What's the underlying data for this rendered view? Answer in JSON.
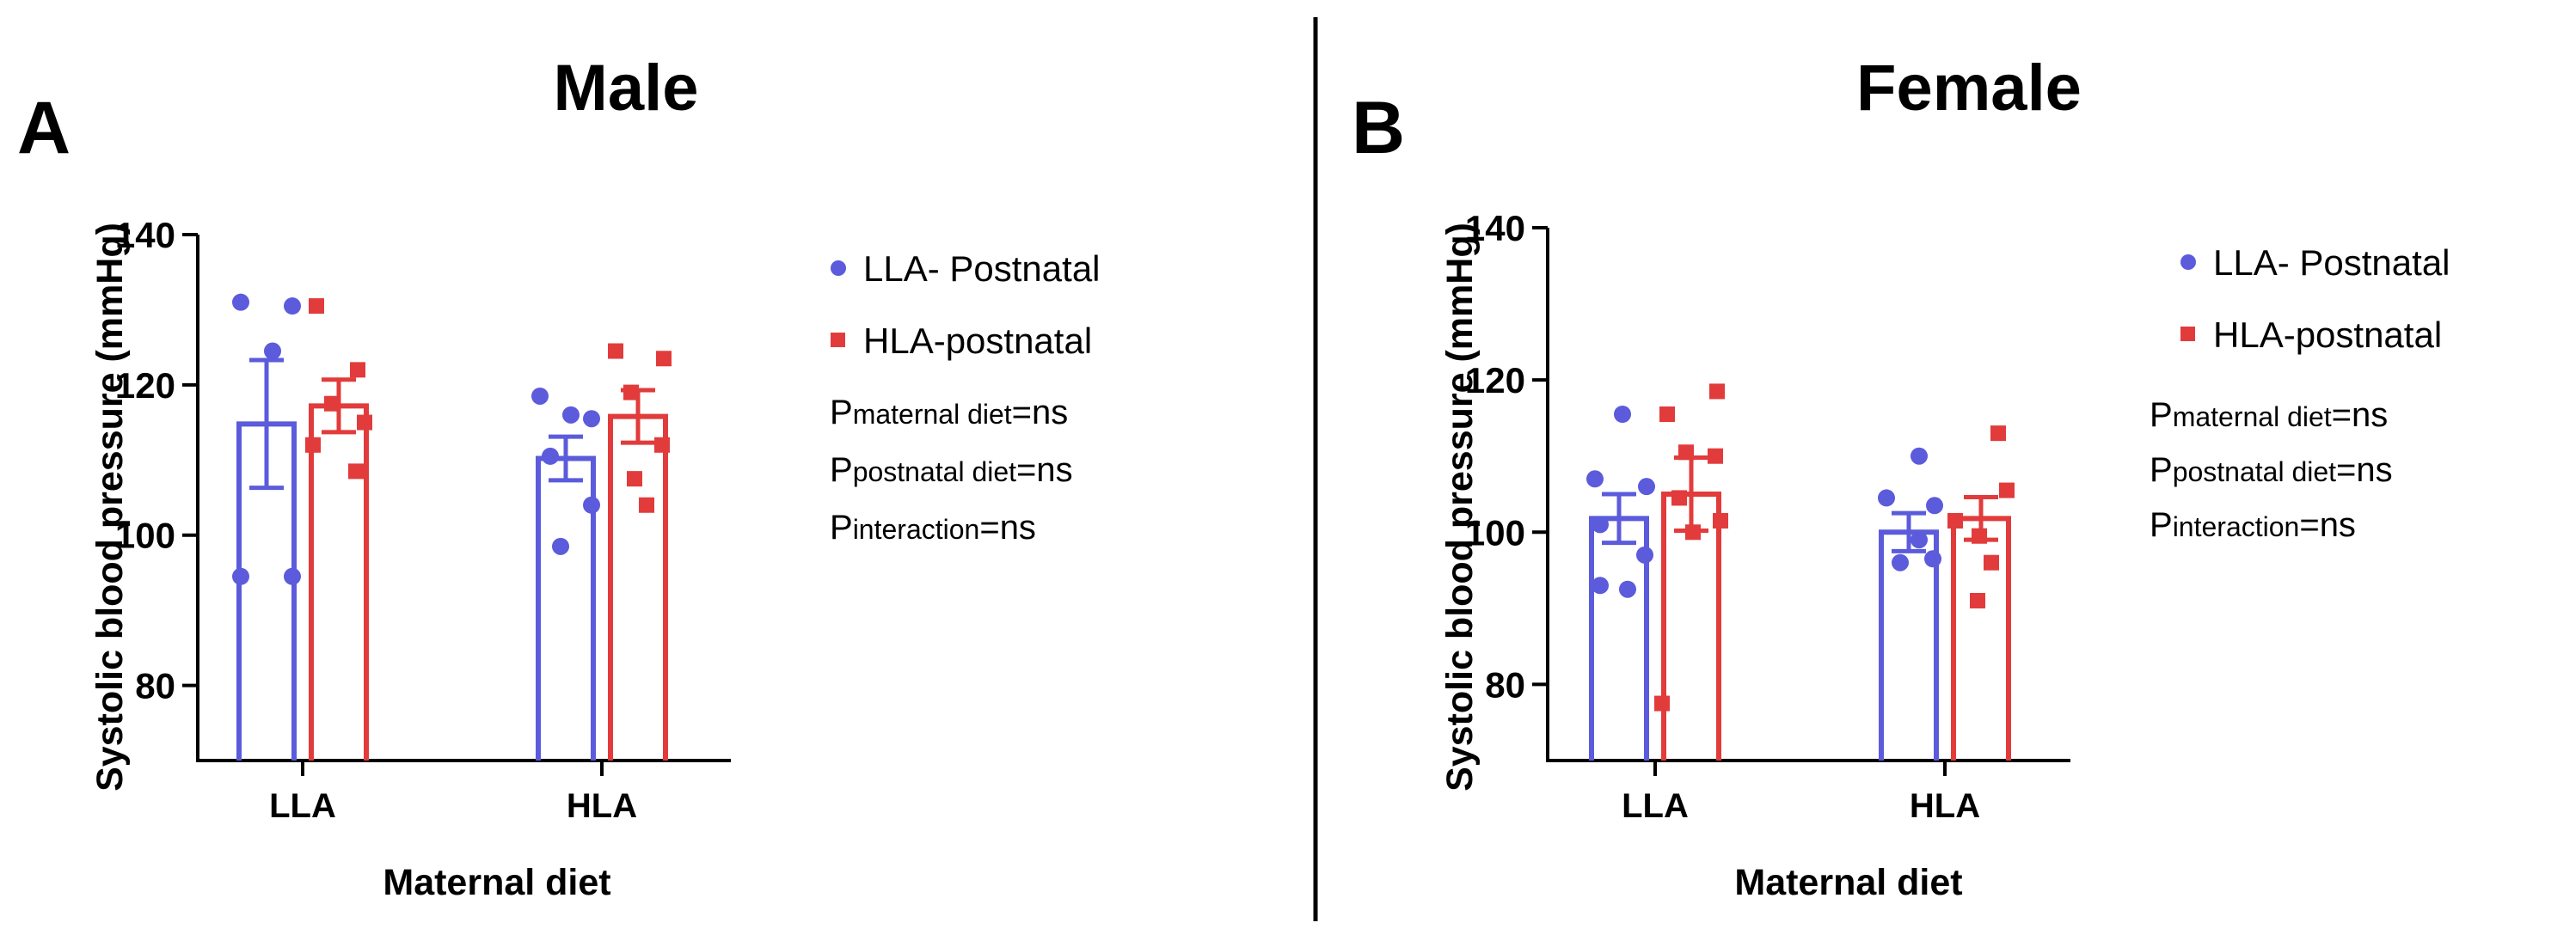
{
  "colors": {
    "llaBlue": "#5b5bdc",
    "hlaRed": "#e23b3b",
    "axis": "#000000"
  },
  "chart_data": [
    {
      "type": "bar",
      "panel": "A",
      "title": "Male",
      "xlabel": "Maternal diet",
      "ylabel": "Systolic blood pressure (mmHg)",
      "categories": [
        "LLA",
        "HLA"
      ],
      "ylim": [
        70,
        140
      ],
      "yticks": [
        80,
        100,
        120,
        140
      ],
      "error_bars": "SEM",
      "legend_position": "right",
      "series": [
        {
          "name": "LLA- Postnatal",
          "marker": "circle",
          "color": "#5b5bdc",
          "values": [
            114.8,
            110.2
          ],
          "sem": [
            8.5,
            2.9
          ],
          "points": [
            [
              131,
              130.5,
              124.5,
              94.5,
              94.5
            ],
            [
              118.5,
              116,
              115.5,
              110.5,
              104,
              98.5
            ]
          ]
        },
        {
          "name": "HLA-postnatal",
          "marker": "square",
          "color": "#e23b3b",
          "values": [
            117.2,
            115.8
          ],
          "sem": [
            3.5,
            3.5
          ],
          "points": [
            [
              130.5,
              122,
              117.5,
              115,
              112,
              108.5
            ],
            [
              124.5,
              123.5,
              119,
              112,
              107.5,
              104
            ]
          ]
        }
      ],
      "stats": [
        {
          "main": "P",
          "sub": "maternal diet",
          "suffix": "=ns"
        },
        {
          "main": "P",
          "sub": "postnatal diet",
          "suffix": "=ns"
        },
        {
          "main": "P",
          "sub": "interaction",
          "suffix": "=ns"
        }
      ]
    },
    {
      "type": "bar",
      "panel": "B",
      "title": "Female",
      "xlabel": "Maternal diet",
      "ylabel": "Systolic blood pressure (mmHg)",
      "categories": [
        "LLA",
        "HLA"
      ],
      "ylim": [
        70,
        140
      ],
      "yticks": [
        80,
        100,
        120,
        140
      ],
      "error_bars": "SEM",
      "legend_position": "right",
      "series": [
        {
          "name": "LLA- Postnatal",
          "marker": "circle",
          "color": "#5b5bdc",
          "values": [
            101.8,
            100
          ],
          "sem": [
            3.2,
            2.5
          ],
          "points": [
            [
              115.5,
              107,
              106,
              101,
              97,
              93,
              92.5
            ],
            [
              110,
              104.5,
              103.5,
              99,
              96.5,
              96
            ]
          ]
        },
        {
          "name": "HLA-postnatal",
          "marker": "square",
          "color": "#e23b3b",
          "values": [
            105,
            101.8
          ],
          "sem": [
            4.8,
            2.8
          ],
          "points": [
            [
              118.5,
              115.5,
              110,
              110.5,
              104.5,
              101.5,
              100,
              77.5
            ],
            [
              113,
              105.5,
              101.5,
              99.5,
              96,
              91
            ]
          ]
        }
      ],
      "stats": [
        {
          "main": "P",
          "sub": "maternal diet",
          "suffix": "=ns"
        },
        {
          "main": "P",
          "sub": "postnatal diet",
          "suffix": "=ns"
        },
        {
          "main": "P",
          "sub": "interaction",
          "suffix": "=ns"
        }
      ]
    }
  ]
}
